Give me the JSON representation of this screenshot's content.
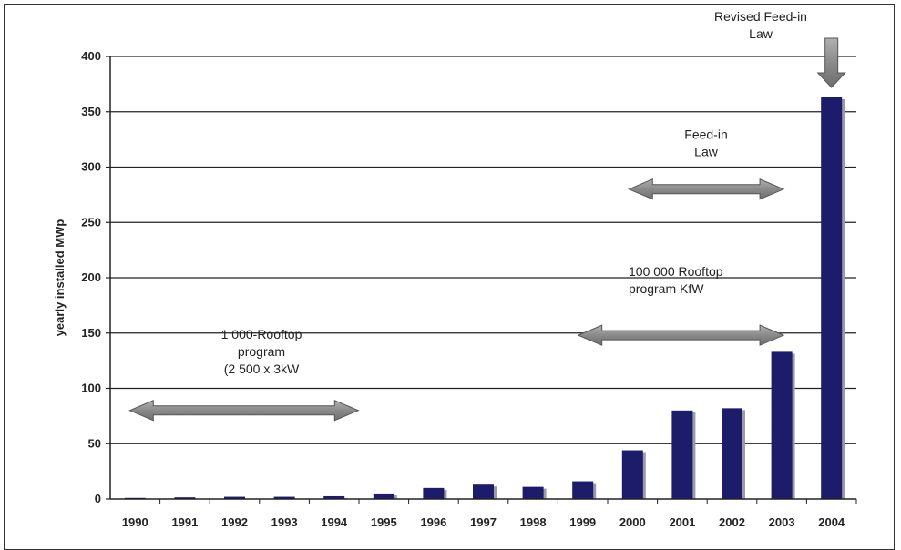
{
  "chart_data": {
    "type": "bar",
    "title": "",
    "xlabel": "",
    "ylabel": "yearly installed MWp",
    "ylim": [
      0,
      400
    ],
    "yticks": [
      0,
      50,
      100,
      150,
      200,
      250,
      300,
      350,
      400
    ],
    "grid": true,
    "categories": [
      "1990",
      "1991",
      "1992",
      "1993",
      "1994",
      "1995",
      "1996",
      "1997",
      "1998",
      "1999",
      "2000",
      "2001",
      "2002",
      "2003",
      "2004"
    ],
    "values": [
      1,
      1.5,
      2,
      2,
      2.5,
      5,
      10,
      13,
      11,
      16,
      44,
      80,
      82,
      133,
      363
    ],
    "bar_color": "#1c1c6b",
    "annotations": [
      {
        "id": "rooftop1000",
        "lines": [
          "1 000-Rooftop",
          "program",
          "(2 500 x 3kW"
        ],
        "from": "1990",
        "to": "1995",
        "y": 80
      },
      {
        "id": "rooftop100000",
        "lines": [
          "100 000 Rooftop",
          "program KfW"
        ],
        "from": "1999",
        "to": "2003",
        "y": 148
      },
      {
        "id": "feedin",
        "lines": [
          "Feed-in",
          "Law"
        ],
        "from": "2000",
        "to": "2003",
        "y": 280
      },
      {
        "id": "revised",
        "lines": [
          "Revised Feed-in",
          "Law"
        ],
        "at": "2004"
      }
    ]
  }
}
